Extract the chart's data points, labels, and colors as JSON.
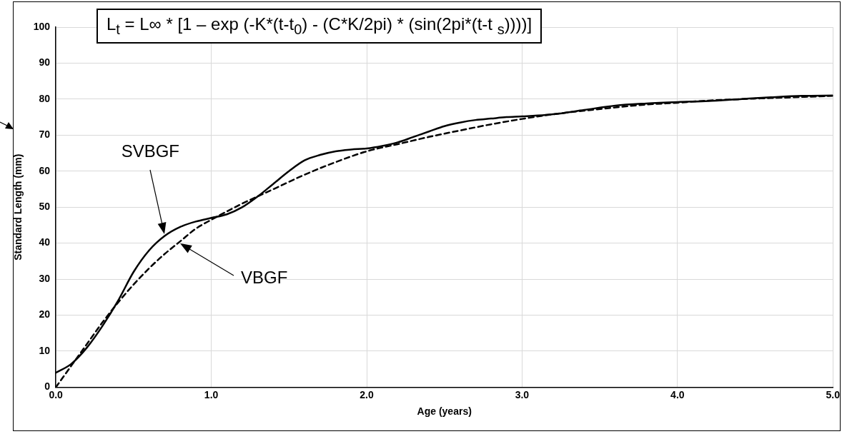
{
  "chart_data": {
    "type": "line",
    "title": "L$_{t}$ = L∞ * [1 – exp (-K*(t-t$_{0}$) - (C*K/2pi) * (sin(2pi*(t-t $_{s}$))))]",
    "xlabel": "Age (years)",
    "ylabel": "Standard Length (mm)",
    "xlim": [
      0,
      5
    ],
    "xticks": [
      {
        "value": 0,
        "label": "0.0"
      },
      {
        "value": 1,
        "label": "1.0"
      },
      {
        "value": 2,
        "label": "2.0"
      },
      {
        "value": 3,
        "label": "3.0"
      },
      {
        "value": 4,
        "label": "4.0"
      },
      {
        "value": 5,
        "label": "5.0"
      }
    ],
    "ylim": [
      0,
      100
    ],
    "yticks": [
      0,
      10,
      20,
      30,
      40,
      50,
      60,
      70,
      80,
      90,
      100
    ],
    "grid": true,
    "legend": false,
    "marker": "none",
    "series": [
      {
        "color": "#000000",
        "line_style": "solid",
        "x": [
          0,
          0.1,
          0.2,
          0.3,
          0.4,
          0.5,
          0.6,
          0.7,
          0.8,
          0.9,
          1.0,
          1.1,
          1.2,
          1.3,
          1.4,
          1.5,
          1.6,
          1.7,
          1.8,
          1.9,
          2.0,
          2.1,
          2.2,
          2.3,
          2.4,
          2.5,
          2.6,
          2.7,
          2.8,
          2.9,
          3.0,
          3.2,
          3.4,
          3.6,
          3.8,
          4.0,
          4.2,
          4.4,
          4.6,
          4.8,
          5.0
        ],
        "values": [
          4,
          6.5,
          11,
          17,
          24,
          32,
          38,
          42,
          44.5,
          46,
          47,
          48,
          50,
          53,
          56.5,
          60,
          63,
          64.5,
          65.5,
          66,
          66.3,
          67,
          68,
          69.5,
          71,
          72.5,
          73.5,
          74.2,
          74.6,
          75,
          75.2,
          75.8,
          77,
          78.2,
          78.8,
          79.2,
          79.5,
          80,
          80.5,
          80.9,
          81
        ]
      },
      {
        "color": "#000000",
        "line_style": "dashed",
        "x": [
          0,
          0.1,
          0.2,
          0.3,
          0.4,
          0.5,
          0.6,
          0.7,
          0.8,
          0.9,
          1.0,
          1.2,
          1.4,
          1.6,
          1.8,
          2.0,
          2.2,
          2.4,
          2.6,
          2.8,
          3.0,
          3.2,
          3.4,
          3.6,
          3.8,
          4.0,
          4.2,
          4.4,
          4.6,
          4.8,
          5.0
        ],
        "values": [
          0,
          6,
          12,
          18,
          23.5,
          28.5,
          33,
          37,
          40.5,
          44,
          46.5,
          51,
          55,
          59,
          62.5,
          65.5,
          67.5,
          69.5,
          71.3,
          73,
          74.5,
          75.8,
          76.8,
          77.7,
          78.5,
          79,
          79.6,
          80,
          80.3,
          80.6,
          80.9
        ]
      }
    ],
    "annotations": [
      "SVBGF",
      "VBGF"
    ]
  }
}
